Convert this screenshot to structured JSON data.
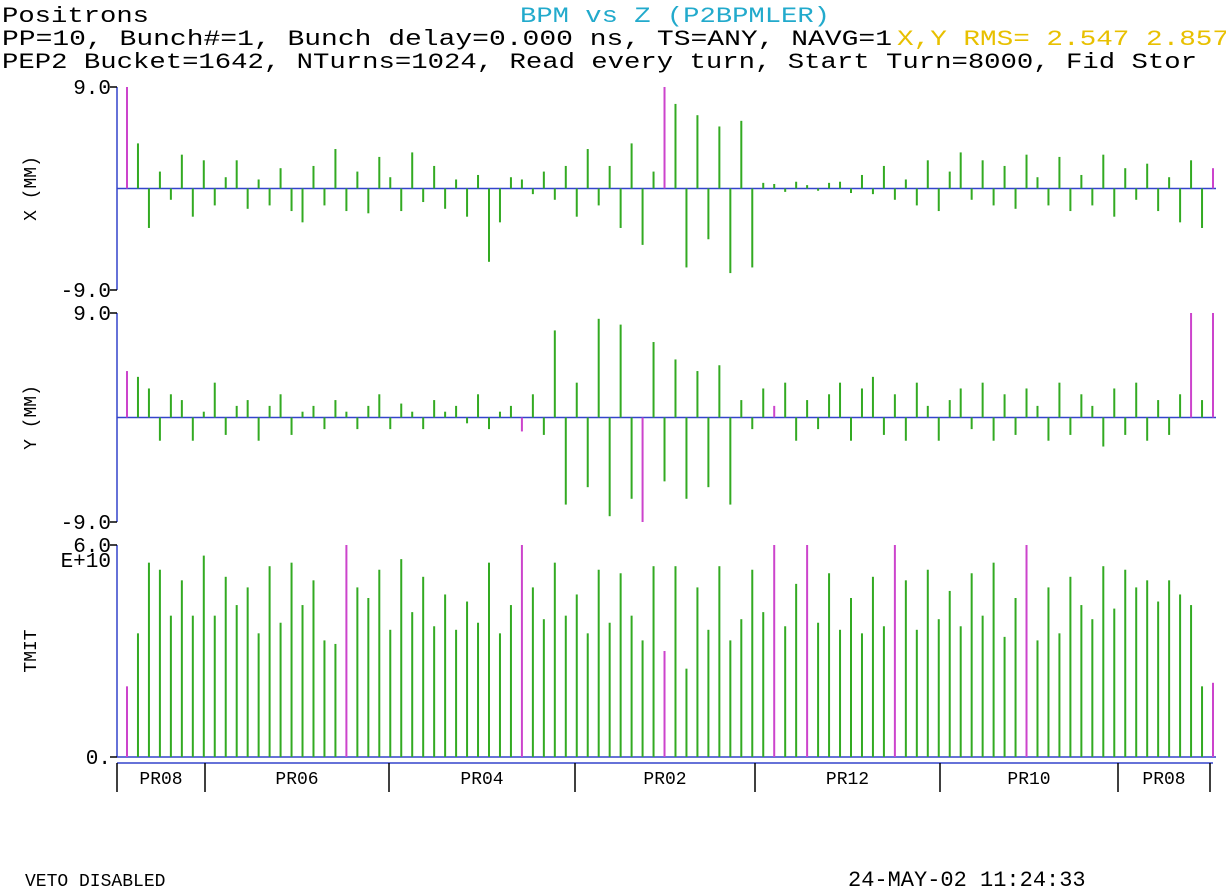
{
  "header": {
    "left": "Positrons",
    "title": "BPM vs Z (P2BPMLER)",
    "line2": "PP=10, Bunch#=1, Bunch delay=0.000 ns, TS=ANY, NAVG=1",
    "rms": "X,Y RMS= 2.547 2.857",
    "line3": "PEP2 Bucket=1642, NTurns=1024, Read every turn, Start Turn=8000, Fid Stor"
  },
  "chart_data": [
    {
      "type": "bar",
      "ylabel": "X (MM)",
      "ylim": [
        -9,
        9
      ],
      "yticks": [
        {
          "value": 9,
          "label": "9.0"
        },
        {
          "value": -9,
          "label": "-9.0"
        }
      ],
      "axis_color": "#3344cc",
      "series": [
        {
          "color": "#33aa22",
          "values": [
            null,
            4.0,
            -3.5,
            1.5,
            -1.0,
            3.0,
            -2.5,
            2.5,
            -1.5,
            1.0,
            2.5,
            -1.8,
            0.8,
            -1.5,
            1.8,
            -2.0,
            -3.0,
            2.0,
            -1.5,
            3.5,
            -2.0,
            1.5,
            -2.2,
            2.8,
            1.0,
            -2.0,
            3.2,
            -1.2,
            2.0,
            -1.8,
            0.8,
            -2.5,
            1.2,
            -6.5,
            -3.0,
            1.0,
            0.8,
            -0.5,
            1.5,
            -1.0,
            2.0,
            -2.5,
            3.5,
            -1.5,
            2.0,
            -3.5,
            4.0,
            -5.0,
            1.5,
            null,
            7.5,
            -7.0,
            6.5,
            -4.5,
            5.5,
            -7.5,
            6.0,
            -7.0,
            0.5,
            0.4,
            -0.3,
            0.6,
            0.3,
            -0.2,
            0.5,
            0.6,
            -0.4,
            1.2,
            -0.5,
            2.0,
            -1.0,
            0.8,
            -1.5,
            2.5,
            -2.0,
            1.5,
            3.2,
            -1.0,
            2.5,
            -1.5,
            2.0,
            -1.8,
            3.0,
            1.0,
            -1.5,
            2.8,
            -2.0,
            1.2,
            -1.5,
            3.0,
            -2.5,
            1.8,
            -1.0,
            2.2,
            -2.0,
            1.0,
            -3.0,
            2.5,
            -3.5,
            null
          ]
        },
        {
          "color": "#cc44cc",
          "values": [
            9,
            null,
            null,
            null,
            null,
            null,
            null,
            null,
            null,
            null,
            null,
            null,
            null,
            null,
            null,
            null,
            null,
            null,
            null,
            null,
            null,
            null,
            null,
            null,
            null,
            null,
            null,
            null,
            null,
            null,
            null,
            null,
            null,
            null,
            null,
            null,
            null,
            null,
            null,
            null,
            null,
            null,
            null,
            null,
            null,
            null,
            null,
            null,
            null,
            9,
            null,
            null,
            null,
            null,
            null,
            null,
            null,
            null,
            null,
            null,
            null,
            null,
            null,
            null,
            null,
            null,
            null,
            null,
            null,
            null,
            null,
            null,
            null,
            null,
            null,
            null,
            null,
            null,
            null,
            null,
            null,
            null,
            null,
            null,
            null,
            null,
            null,
            null,
            null,
            null,
            null,
            null,
            null,
            null,
            null,
            null,
            null,
            null,
            null,
            1.8
          ]
        }
      ]
    },
    {
      "type": "bar",
      "ylabel": "Y (MM)",
      "ylim": [
        -9,
        9
      ],
      "yticks": [
        {
          "value": 9,
          "label": "9.0"
        },
        {
          "value": -9,
          "label": "-9.0"
        }
      ],
      "axis_color": "#3344cc",
      "series": [
        {
          "color": "#33aa22",
          "values": [
            null,
            3.5,
            2.5,
            -2,
            2,
            1.5,
            -2,
            0.5,
            3,
            -1.5,
            1,
            1.5,
            -2,
            1,
            2,
            -1.5,
            0.5,
            1,
            -1,
            1.5,
            0.5,
            -1,
            1,
            2,
            -1,
            1.2,
            0.5,
            -1,
            1.5,
            0.5,
            1,
            -0.5,
            2,
            -1,
            0.5,
            1,
            null,
            2,
            -1.5,
            7.5,
            -7.5,
            3,
            -6,
            8.5,
            -8.5,
            8,
            -7,
            null,
            6.5,
            -5.5,
            5,
            -7,
            4,
            -6,
            4.5,
            -7.5,
            1.5,
            -1,
            2.5,
            null,
            3,
            -2,
            1.5,
            -1,
            2,
            3,
            -2,
            2.5,
            3.5,
            -1.5,
            2,
            -2,
            3,
            1,
            -2,
            1.5,
            2.5,
            -1,
            3,
            -2,
            2,
            -1.5,
            2.5,
            1,
            -2,
            3,
            -1.5,
            2,
            1,
            -2.5,
            2.5,
            -1.5,
            3,
            -2,
            1.5,
            -1.5,
            2,
            null,
            1.5,
            null
          ]
        },
        {
          "color": "#cc44cc",
          "values": [
            4,
            null,
            null,
            null,
            null,
            null,
            null,
            null,
            null,
            null,
            null,
            null,
            null,
            null,
            null,
            null,
            null,
            null,
            null,
            null,
            null,
            null,
            null,
            null,
            null,
            null,
            null,
            null,
            null,
            null,
            null,
            null,
            null,
            null,
            null,
            null,
            -1.2,
            null,
            null,
            null,
            null,
            null,
            null,
            null,
            null,
            null,
            null,
            -9,
            null,
            null,
            null,
            null,
            null,
            null,
            null,
            null,
            null,
            null,
            null,
            1,
            null,
            null,
            null,
            null,
            null,
            null,
            null,
            null,
            null,
            null,
            null,
            null,
            null,
            null,
            null,
            null,
            null,
            null,
            null,
            null,
            null,
            null,
            null,
            null,
            null,
            null,
            null,
            null,
            null,
            null,
            null,
            null,
            null,
            null,
            null,
            null,
            null,
            9,
            null,
            9
          ]
        }
      ]
    },
    {
      "type": "bar",
      "ylabel": "TMIT",
      "yunit": "E+10",
      "ylim": [
        0,
        6
      ],
      "yticks": [
        {
          "value": 6,
          "label": "6.0"
        },
        {
          "value": 0,
          "label": "0."
        }
      ],
      "axis_color": "#3344cc",
      "series": [
        {
          "color": "#33aa22",
          "values": [
            null,
            3.5,
            5.5,
            5.3,
            4.0,
            5.0,
            4.0,
            5.7,
            4.0,
            5.1,
            4.3,
            4.8,
            3.5,
            5.4,
            3.8,
            5.5,
            4.3,
            5.0,
            3.3,
            3.2,
            null,
            4.8,
            4.5,
            5.3,
            3.6,
            5.6,
            4.1,
            5.1,
            3.7,
            4.6,
            3.6,
            4.4,
            3.8,
            5.5,
            3.5,
            4.3,
            null,
            4.8,
            3.9,
            5.5,
            4.0,
            4.6,
            3.5,
            5.3,
            3.8,
            5.2,
            4.0,
            3.3,
            5.4,
            null,
            5.4,
            2.5,
            4.8,
            3.6,
            5.4,
            3.3,
            3.9,
            5.3,
            4.1,
            null,
            3.7,
            4.9,
            null,
            3.8,
            5.2,
            3.6,
            4.5,
            3.5,
            5.1,
            3.7,
            null,
            5.0,
            3.6,
            5.3,
            3.9,
            4.7,
            3.7,
            5.2,
            4.0,
            5.5,
            3.4,
            4.5,
            null,
            3.3,
            4.8,
            3.5,
            5.1,
            4.3,
            3.9,
            5.4,
            4.2,
            5.3,
            4.8,
            5.0,
            4.4,
            5.0,
            4.6,
            4.3,
            2.0,
            null
          ]
        },
        {
          "color": "#cc44cc",
          "values": [
            2.0,
            null,
            null,
            null,
            null,
            null,
            null,
            null,
            null,
            null,
            null,
            null,
            null,
            null,
            null,
            null,
            null,
            null,
            null,
            null,
            6,
            null,
            null,
            null,
            null,
            null,
            null,
            null,
            null,
            null,
            null,
            null,
            null,
            null,
            null,
            null,
            6,
            null,
            null,
            null,
            null,
            null,
            null,
            null,
            null,
            null,
            null,
            null,
            null,
            3.0,
            null,
            null,
            null,
            null,
            null,
            null,
            null,
            null,
            null,
            6,
            null,
            null,
            6,
            null,
            null,
            null,
            null,
            null,
            null,
            null,
            6,
            null,
            null,
            null,
            null,
            null,
            null,
            null,
            null,
            null,
            null,
            null,
            6,
            null,
            null,
            null,
            null,
            null,
            null,
            null,
            null,
            null,
            null,
            null,
            null,
            null,
            null,
            null,
            null,
            2.1
          ]
        }
      ]
    }
  ],
  "sectors": [
    "PR08",
    "PR06",
    "PR04",
    "PR02",
    "PR12",
    "PR10",
    "PR08"
  ],
  "footer": {
    "left": "VETO DISABLED",
    "right": "24-MAY-02 11:24:33"
  }
}
